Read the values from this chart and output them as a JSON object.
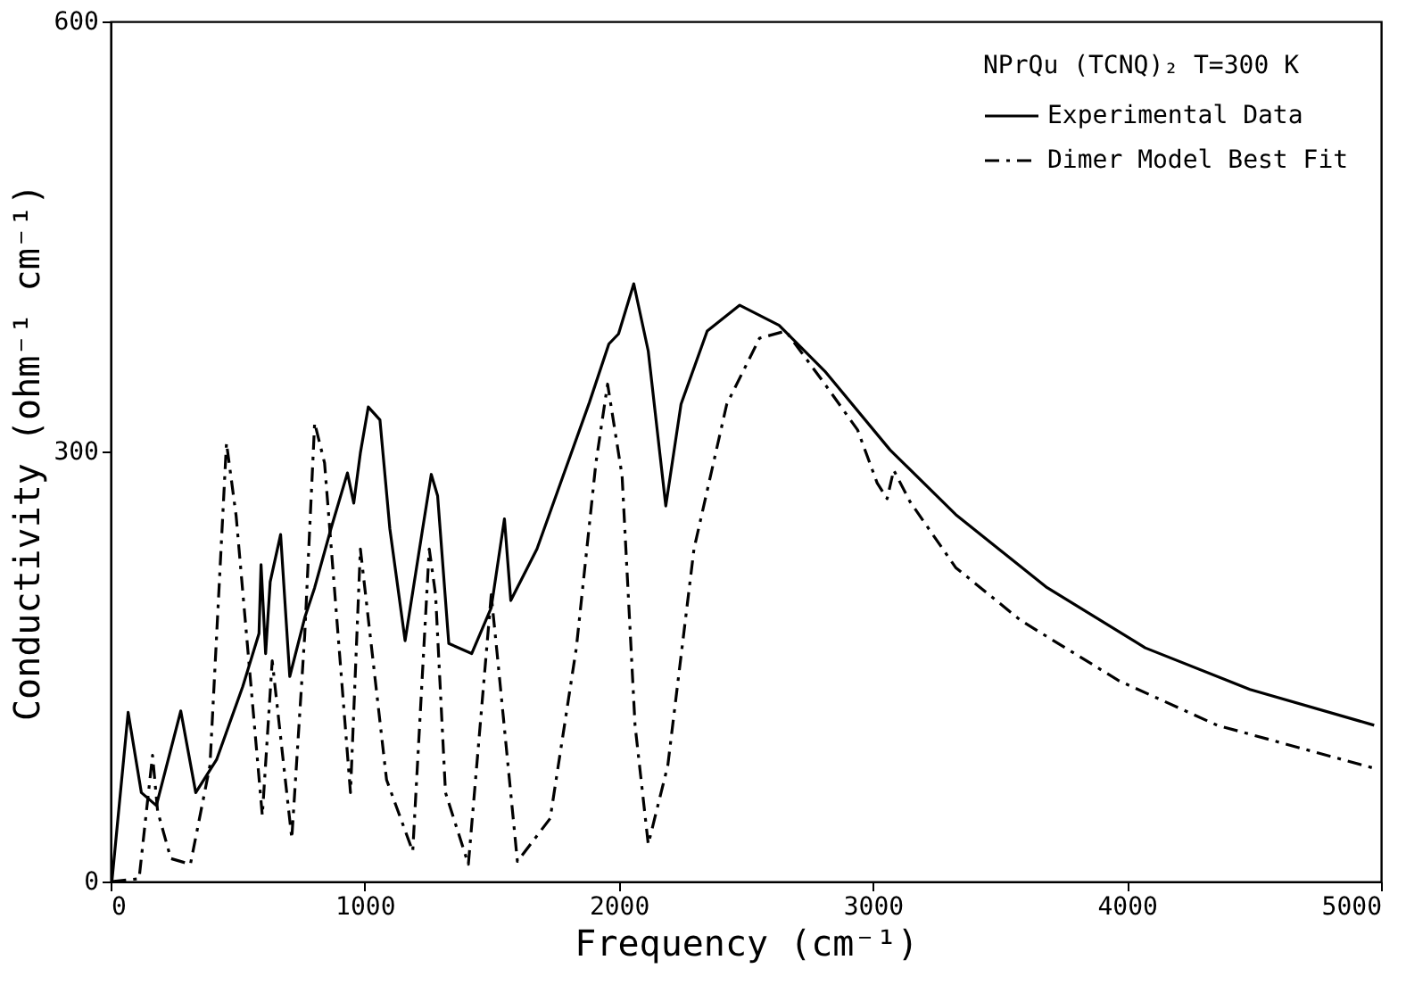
{
  "chart_data": {
    "type": "line",
    "xlabel": "Frequency (cm⁻¹)",
    "ylabel": "Conductivity (ohm⁻¹ cm⁻¹)",
    "legend_title": "NPrQu (TCNQ)₂  T=300 K",
    "legend": "top right",
    "grid": false,
    "marker": "none",
    "xlim": [
      0,
      5000
    ],
    "xticks": [
      0,
      1000,
      2000,
      3000,
      4000,
      5000
    ],
    "ylim": [
      0,
      600
    ],
    "yticks": [
      0,
      300,
      600
    ],
    "series": [
      {
        "name": "Experimental Data",
        "color": "#000000",
        "line_style": "solid",
        "x": [
          5,
          69,
          121,
          180,
          276,
          335,
          417,
          520,
          584,
          592,
          610,
          628,
          669,
          705,
          764,
          803,
          867,
          932,
          957,
          983,
          1014,
          1060,
          1099,
          1159,
          1228,
          1262,
          1287,
          1331,
          1421,
          1498,
          1550,
          1575,
          1678,
          1781,
          1884,
          1961,
          1999,
          2059,
          2116,
          2185,
          2245,
          2348,
          2476,
          2631,
          2811,
          3068,
          3326,
          3686,
          4072,
          4484,
          4973
        ],
        "values": [
          0,
          118,
          62,
          53,
          119,
          62,
          85,
          136,
          173,
          221,
          159,
          209,
          242,
          143,
          184,
          205,
          246,
          285,
          264,
          299,
          331,
          322,
          246,
          168,
          246,
          284,
          269,
          166,
          159,
          191,
          253,
          196,
          232,
          283,
          334,
          375,
          382,
          417,
          370,
          262,
          333,
          384,
          402,
          388,
          356,
          301,
          256,
          205,
          163,
          134,
          109
        ]
      },
      {
        "name": "Dimer Model Best Fit",
        "color": "#000000",
        "line_style": "dashed",
        "x": [
          5,
          112,
          165,
          185,
          237,
          314,
          391,
          456,
          494,
          597,
          636,
          713,
          764,
          803,
          842,
          944,
          983,
          1086,
          1189,
          1254,
          1279,
          1318,
          1408,
          1498,
          1524,
          1601,
          1730,
          1833,
          1910,
          1956,
          2013,
          2064,
          2116,
          2193,
          2296,
          2425,
          2554,
          2657,
          2811,
          2940,
          3017,
          3056,
          3082,
          3146,
          3326,
          3583,
          3969,
          4355,
          4973
        ],
        "values": [
          0,
          2,
          88,
          49,
          16,
          12,
          81,
          306,
          255,
          46,
          154,
          30,
          172,
          320,
          292,
          62,
          232,
          71,
          21,
          232,
          200,
          62,
          12,
          200,
          154,
          14,
          44,
          163,
          292,
          347,
          283,
          109,
          26,
          81,
          232,
          333,
          379,
          384,
          347,
          315,
          278,
          267,
          287,
          265,
          219,
          182,
          140,
          109,
          79
        ]
      }
    ]
  }
}
